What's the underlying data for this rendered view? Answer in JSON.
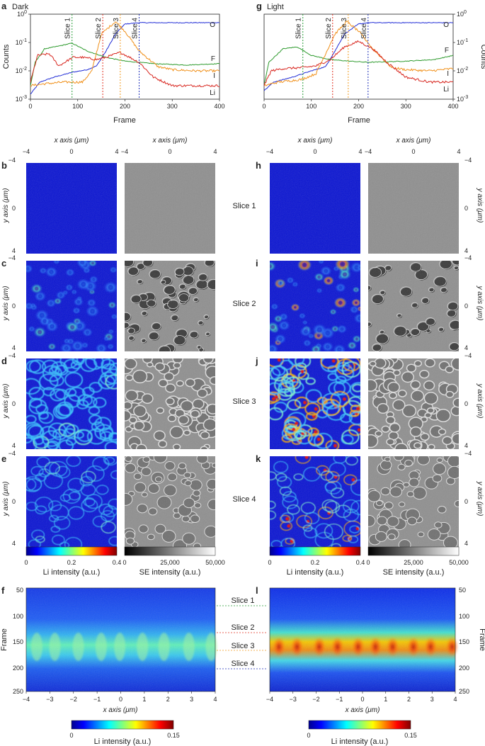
{
  "panels": {
    "a": "a",
    "b": "b",
    "c": "c",
    "d": "d",
    "e": "e",
    "f": "f",
    "g": "g",
    "h": "h",
    "i": "i",
    "j": "j",
    "k": "k",
    "l": "l"
  },
  "headers": {
    "dark": "Dark",
    "light": "Light"
  },
  "slices": [
    "Slice 1",
    "Slice 2",
    "Slice 3",
    "Slice 4"
  ],
  "slice_colors": [
    "#2a9d3a",
    "#e03020",
    "#f29a1e",
    "#1d2fb8"
  ],
  "profile_labels": {
    "xlabel": "Frame",
    "ylabel": "Counts"
  },
  "map_labels": {
    "x": "x axis (μm)",
    "y": "y axis (μm)"
  },
  "colorbars": {
    "li": {
      "label": "Li intensity (a.u.)",
      "ticks": [
        "0",
        "0.2",
        "0.4"
      ]
    },
    "se": {
      "label": "SE intensity (a.u.)",
      "ticks": [
        "0",
        "25,000",
        "50,000"
      ]
    },
    "li_kymo": {
      "label": "Li intensity (a.u.)",
      "ticks": [
        "0",
        "0.15"
      ]
    }
  },
  "chart_data": [
    {
      "type": "line",
      "panel": "a",
      "title": "Dark",
      "xlabel": "Frame",
      "ylabel": "Counts",
      "xlim": [
        0,
        400
      ],
      "ylim": [
        0.001,
        1
      ],
      "yscale": "log",
      "x_ticks": [
        "0",
        "100",
        "200",
        "300",
        "400"
      ],
      "y_ticks": [
        "10^-3",
        "10^-2",
        "10^-1",
        "10^0"
      ],
      "slice_markers": [
        88,
        153,
        190,
        230
      ],
      "series": [
        {
          "name": "O",
          "color": "#1f2bd6",
          "x": [
            0,
            20,
            50,
            90,
            120,
            140,
            160,
            180,
            200,
            230,
            300,
            400
          ],
          "y": [
            0.0015,
            0.004,
            0.006,
            0.009,
            0.011,
            0.015,
            0.05,
            0.2,
            0.45,
            0.5,
            0.5,
            0.5
          ]
        },
        {
          "name": "F",
          "color": "#2d9a2d",
          "x": [
            0,
            10,
            30,
            60,
            88,
            120,
            160,
            200,
            260,
            330,
            400
          ],
          "y": [
            0.003,
            0.02,
            0.06,
            0.075,
            0.095,
            0.05,
            0.03,
            0.022,
            0.018,
            0.016,
            0.018
          ]
        },
        {
          "name": "I",
          "color": "#f0901a",
          "x": [
            0,
            30,
            70,
            110,
            130,
            150,
            180,
            200,
            230,
            270,
            300,
            350,
            400
          ],
          "y": [
            0.003,
            0.0035,
            0.004,
            0.004,
            0.01,
            0.2,
            0.55,
            0.25,
            0.05,
            0.014,
            0.011,
            0.01,
            0.01
          ]
        },
        {
          "name": "Li",
          "color": "#d8261f",
          "x": [
            0,
            15,
            40,
            60,
            90,
            110,
            140,
            160,
            190,
            230,
            260,
            300,
            350,
            400
          ],
          "y": [
            0.004,
            0.035,
            0.04,
            0.015,
            0.03,
            0.03,
            0.025,
            0.03,
            0.045,
            0.02,
            0.006,
            0.003,
            0.003,
            0.003
          ]
        }
      ]
    },
    {
      "type": "line",
      "panel": "g",
      "title": "Light",
      "xlabel": "Frame",
      "ylabel": "Counts",
      "xlim": [
        0,
        400
      ],
      "ylim": [
        0.001,
        1
      ],
      "yscale": "log",
      "x_ticks": [
        "0",
        "100",
        "200",
        "300",
        "400"
      ],
      "y_ticks": [
        "10^-3",
        "10^-2",
        "10^-1",
        "10^0"
      ],
      "slice_markers": [
        82,
        145,
        178,
        220
      ],
      "series": [
        {
          "name": "O",
          "color": "#1f2bd6",
          "x": [
            0,
            20,
            60,
            100,
            130,
            150,
            170,
            200,
            220,
            300,
            400
          ],
          "y": [
            0.002,
            0.004,
            0.006,
            0.01,
            0.014,
            0.05,
            0.2,
            0.45,
            0.5,
            0.5,
            0.5
          ]
        },
        {
          "name": "F",
          "color": "#2d9a2d",
          "x": [
            0,
            10,
            40,
            70,
            100,
            140,
            180,
            220,
            300,
            360,
            400
          ],
          "y": [
            0.003,
            0.02,
            0.06,
            0.07,
            0.035,
            0.025,
            0.022,
            0.02,
            0.022,
            0.025,
            0.035
          ]
        },
        {
          "name": "I",
          "color": "#f0901a",
          "x": [
            0,
            30,
            80,
            110,
            130,
            150,
            175,
            200,
            230,
            270,
            300,
            350,
            400
          ],
          "y": [
            0.003,
            0.004,
            0.005,
            0.008,
            0.04,
            0.2,
            0.55,
            0.25,
            0.06,
            0.013,
            0.011,
            0.01,
            0.012
          ]
        },
        {
          "name": "Li",
          "color": "#d8261f",
          "x": [
            0,
            15,
            40,
            80,
            110,
            140,
            170,
            200,
            230,
            260,
            300,
            350,
            400
          ],
          "y": [
            0.003,
            0.01,
            0.012,
            0.013,
            0.015,
            0.025,
            0.07,
            0.11,
            0.06,
            0.02,
            0.006,
            0.004,
            0.004
          ]
        }
      ]
    }
  ]
}
